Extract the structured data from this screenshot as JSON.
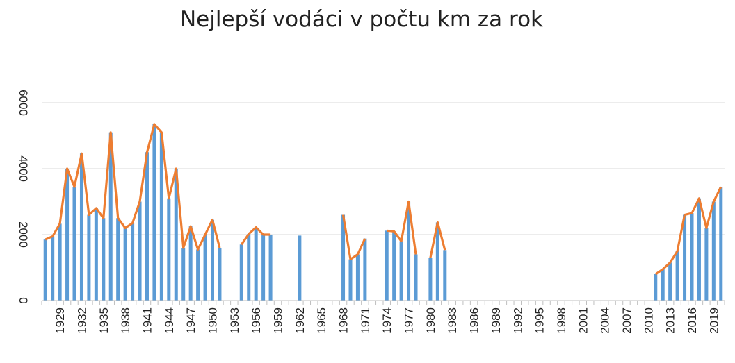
{
  "chart_data": {
    "type": "bar",
    "title": "Nejlepší vodáci v počtu km za rok",
    "xlabel": "",
    "ylabel": "",
    "y_tick_labels": [
      "0",
      "2000",
      "4000",
      "6000"
    ],
    "y_tick_values": [
      0,
      2000,
      4000,
      6000
    ],
    "ylim": [
      0,
      6000
    ],
    "grid": true,
    "legend": "none",
    "x_tick_labels": [
      "1929",
      "1932",
      "1935",
      "1938",
      "1941",
      "1944",
      "1947",
      "1950",
      "1953",
      "1956",
      "1959",
      "1962",
      "1965",
      "1968",
      "1971",
      "1974",
      "1977",
      "1980",
      "1983",
      "1986",
      "1989",
      "1992",
      "1995",
      "1998",
      "2001",
      "2004",
      "2007",
      "2010",
      "2013",
      "2016",
      "2019"
    ],
    "categories": [
      1927,
      1928,
      1929,
      1930,
      1931,
      1932,
      1933,
      1934,
      1935,
      1936,
      1937,
      1938,
      1939,
      1940,
      1941,
      1942,
      1943,
      1944,
      1945,
      1946,
      1947,
      1948,
      1949,
      1950,
      1951,
      1952,
      1953,
      1954,
      1955,
      1956,
      1957,
      1958,
      1959,
      1960,
      1961,
      1962,
      1963,
      1964,
      1965,
      1966,
      1967,
      1968,
      1969,
      1970,
      1971,
      1972,
      1973,
      1974,
      1975,
      1976,
      1977,
      1978,
      1979,
      1980,
      1981,
      1982,
      1983,
      1984,
      1985,
      1986,
      1987,
      1988,
      1989,
      1990,
      1991,
      1992,
      1993,
      1994,
      1995,
      1996,
      1997,
      1998,
      1999,
      2000,
      2001,
      2002,
      2003,
      2004,
      2005,
      2006,
      2007,
      2008,
      2009,
      2010,
      2011,
      2012,
      2013,
      2014,
      2015,
      2016,
      2017,
      2018,
      2019,
      2020
    ],
    "values": [
      1850,
      1950,
      2330,
      4000,
      3450,
      4460,
      2600,
      2800,
      2500,
      5100,
      2500,
      2200,
      2350,
      3000,
      4500,
      5350,
      5100,
      3100,
      4000,
      1600,
      2250,
      1550,
      2000,
      2450,
      1600,
      null,
      null,
      1700,
      2020,
      2220,
      2000,
      2000,
      null,
      null,
      null,
      1970,
      null,
      null,
      null,
      null,
      null,
      2600,
      1250,
      1400,
      1880,
      null,
      null,
      2120,
      2100,
      1800,
      3000,
      1400,
      null,
      1300,
      2370,
      1530,
      null,
      null,
      null,
      null,
      null,
      null,
      null,
      null,
      null,
      null,
      null,
      null,
      null,
      null,
      null,
      null,
      null,
      null,
      null,
      null,
      null,
      null,
      null,
      null,
      null,
      null,
      null,
      null,
      800,
      950,
      1150,
      1500,
      2600,
      2650,
      3100,
      2200,
      3000,
      3450
    ],
    "colors": {
      "bar": "#5b9bd5",
      "line": "#ed7d31",
      "grid": "#d9d9d9",
      "axis": "#bfbfbf"
    }
  }
}
